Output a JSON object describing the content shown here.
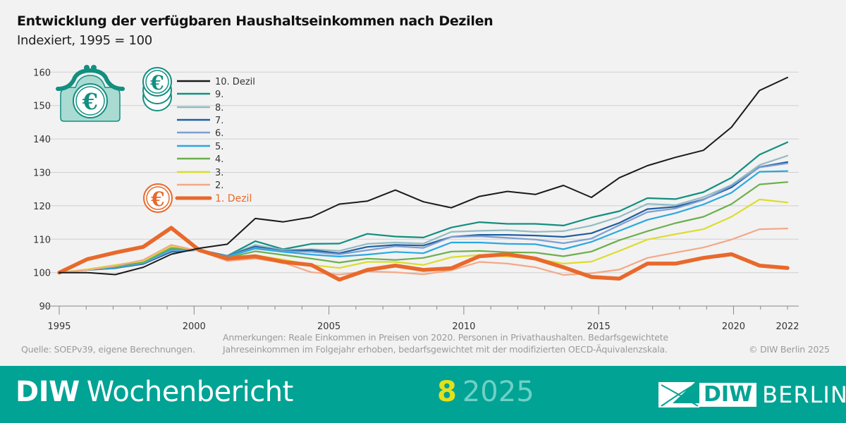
{
  "chart_data": {
    "type": "line",
    "title": "Entwicklung der verfügbaren Haushaltseinkommen nach Dezilen",
    "subtitle": "Indexiert, 1995 = 100",
    "xlabel": "",
    "ylabel": "",
    "x_range": [
      1995,
      2022
    ],
    "x_ticks": [
      "1995",
      "2000",
      "2005",
      "2010",
      "2015",
      "2020",
      "2022"
    ],
    "y_ticks": [
      "160",
      "150",
      "140",
      "130",
      "120",
      "110",
      "100",
      "90"
    ],
    "ylim": [
      90,
      160
    ],
    "grid": true,
    "legend_placement": "top-left",
    "series": [
      {
        "name": "10. Dezil",
        "color": "#1a1a1a",
        "values": [
          100,
          100,
          99.4,
          101.6,
          105.5,
          107.3,
          108.5,
          116.2,
          115.2,
          116.6,
          120.5,
          121.4,
          124.7,
          121.2,
          119.4,
          122.8,
          124.3,
          123.4,
          126.1,
          122.5,
          128.4,
          132.0,
          134.5,
          136.6,
          143.5,
          154.5,
          158.4
        ]
      },
      {
        "name": "9.",
        "color": "#128f80",
        "values": [
          100,
          100.8,
          101.3,
          103,
          107,
          106.8,
          105,
          109.4,
          107,
          108.6,
          108.7,
          111.6,
          110.8,
          110.5,
          113.5,
          115.1,
          114.6,
          114.6,
          114.1,
          116.5,
          118.4,
          122.3,
          122,
          124.1,
          128.4,
          135.3,
          139
        ]
      },
      {
        "name": "8.",
        "color": "#92bcc2",
        "values": [
          100,
          100.9,
          101.3,
          103,
          106.8,
          106.8,
          105,
          108.3,
          106.8,
          107,
          106.5,
          108.6,
          109,
          108.7,
          112.2,
          112.5,
          112.7,
          112.2,
          112.4,
          114.1,
          116.7,
          120.6,
          120.2,
          122.6,
          126.2,
          132.2,
          135
        ]
      },
      {
        "name": "7.",
        "color": "#1f5fa0",
        "values": [
          100,
          100.8,
          101.4,
          102.6,
          106.2,
          106.8,
          105,
          107.8,
          106.5,
          106.7,
          105.8,
          107.7,
          108.3,
          108.1,
          110.7,
          111.3,
          111.3,
          111.1,
          110.7,
          111.8,
          114.9,
          119,
          119.7,
          121.9,
          125.5,
          131.6,
          133.1
        ]
      },
      {
        "name": "6.",
        "color": "#7c9fd2",
        "values": [
          100,
          100.9,
          101.5,
          102.8,
          106.6,
          106.7,
          104.9,
          107.4,
          106.4,
          106.2,
          105.5,
          106.7,
          107.9,
          107.4,
          110.7,
          110.9,
          110.4,
          109.9,
          108.8,
          110.2,
          114.2,
          118.1,
          119.2,
          121.8,
          126,
          131.5,
          132.7
        ]
      },
      {
        "name": "5.",
        "color": "#2aa9e0",
        "values": [
          100,
          100.9,
          101.5,
          103,
          107,
          106.7,
          104.8,
          107.2,
          106.2,
          105.4,
          104.8,
          105.4,
          106.2,
          105.8,
          109,
          109,
          108.6,
          108.5,
          107,
          109.2,
          112.5,
          115.8,
          117.8,
          120.4,
          123.9,
          130.2,
          130.4
        ]
      },
      {
        "name": "4.",
        "color": "#6ab04c",
        "values": [
          100,
          100.9,
          101.8,
          103.2,
          107.4,
          106.8,
          104.5,
          106.4,
          105.3,
          104.2,
          103,
          104.2,
          103.8,
          104.4,
          106.3,
          106.5,
          106.1,
          106,
          104.9,
          106.3,
          109.7,
          112.4,
          114.8,
          116.7,
          120.5,
          126.4,
          127.1
        ]
      },
      {
        "name": "3.",
        "color": "#dcdc2c",
        "values": [
          100,
          101,
          102.3,
          103.5,
          108,
          106.6,
          104,
          105.2,
          103.9,
          102.3,
          101.4,
          103.2,
          103.2,
          102.3,
          104.6,
          105.3,
          104.8,
          104.2,
          102.7,
          103.3,
          106.5,
          109.9,
          111.5,
          113,
          116.7,
          121.9,
          121
        ]
      },
      {
        "name": "2.",
        "color": "#f4a887",
        "values": [
          100,
          100.8,
          102,
          103.8,
          108.3,
          106.5,
          103.5,
          104.2,
          103,
          100.1,
          99.4,
          100.4,
          100.1,
          99.5,
          100.7,
          103.2,
          102.7,
          101.6,
          99.3,
          99.8,
          100.9,
          104.4,
          106,
          107.5,
          109.9,
          113,
          113.2
        ]
      },
      {
        "name": "1. Dezil",
        "color": "#e8692b",
        "values": [
          100,
          104,
          106,
          107.7,
          113.4,
          106.7,
          104.2,
          104.9,
          103.2,
          102.3,
          97.9,
          100.8,
          102.1,
          100.8,
          101.3,
          104.9,
          105.5,
          104.2,
          101.6,
          98.7,
          98.2,
          102.7,
          102.7,
          104.4,
          105.5,
          102.1,
          101.4
        ]
      }
    ]
  },
  "icons": {
    "purse": "purse-euro-icon",
    "coins_top": "euro-coins-stack-icon",
    "coin_bottom": "euro-coin-icon"
  },
  "notes": {
    "source": "Quelle: SOEPv39, eigene Berechnungen.",
    "remarks_line1": "Anmerkungen: Reale Einkommen in Preisen von 2020. Personen in Privathaushalten. Bedarfsgewichtete",
    "remarks_line2": "Jahreseinkommen im Folgejahr erhoben, bedarfsgewichtet mit der modifizierten OECD-Äquivalenzskala.",
    "copyright": "© DIW Berlin 2025"
  },
  "footer": {
    "brand_bold": "DIW",
    "brand_rest": "Wochenbericht",
    "issue_number": "8",
    "issue_year": "2025",
    "logo_box": "DIW",
    "logo_text": "BERLIN",
    "color": "#00a394"
  }
}
